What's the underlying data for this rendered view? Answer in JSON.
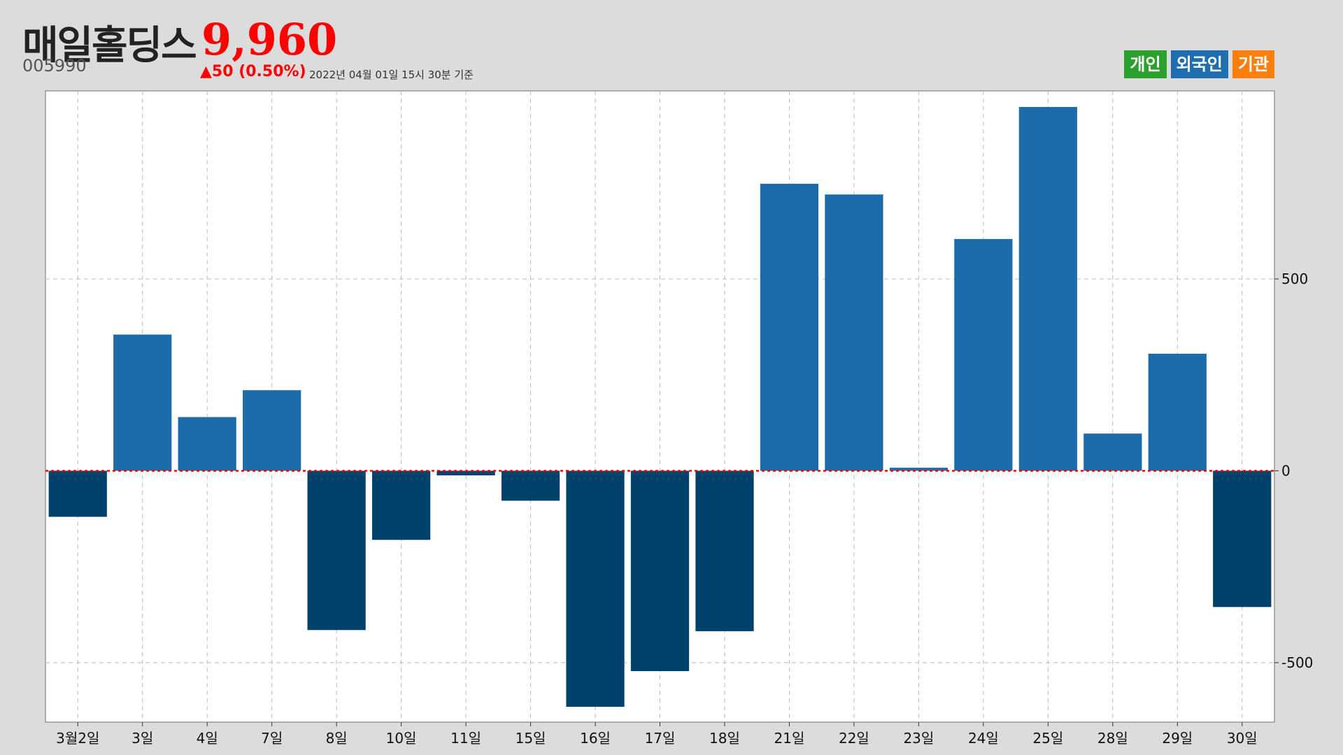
{
  "header": {
    "name": "매일홀딩스",
    "price": "9,960",
    "code": "005990",
    "change": "▲50 (0.50%)",
    "asof": "2022년 04월 01일 15시 30분 기준"
  },
  "legend": [
    {
      "label": "개인",
      "color": "#2ca02c"
    },
    {
      "label": "외국인",
      "color": "#1f6fb0"
    },
    {
      "label": "기관",
      "color": "#ff7f0e"
    }
  ],
  "colors": {
    "positive": "#1c6cab",
    "negative": "#00426b",
    "zero_line": "#ff0000",
    "grid": "#bbbbbb"
  },
  "chart_data": {
    "type": "bar",
    "categories": [
      "3월2일",
      "3일",
      "4일",
      "7일",
      "8일",
      "10일",
      "11일",
      "15일",
      "16일",
      "17일",
      "18일",
      "21일",
      "22일",
      "23일",
      "24일",
      "25일",
      "28일",
      "29일",
      "30일"
    ],
    "series": [
      {
        "values": [
          -120,
          355,
          140,
          210,
          -415,
          -180,
          -12,
          -78,
          -615,
          -522,
          -418,
          748,
          720,
          8,
          604,
          948,
          97,
          305,
          -355
        ]
      }
    ],
    "yticks": [
      -500,
      0,
      500
    ],
    "ylim": [
      -655,
      990
    ],
    "grid": true,
    "y_axis_side": "right"
  }
}
